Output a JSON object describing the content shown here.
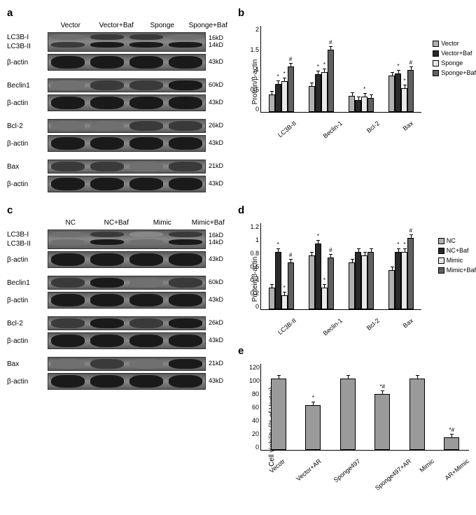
{
  "panels": {
    "a": {
      "label": "a",
      "header": [
        "Vector",
        "Vector+Baf",
        "Sponge",
        "Sponge+Baf"
      ],
      "groups": [
        {
          "labels": [
            "LC3B-I",
            "LC3B-II"
          ],
          "sizes": [
            "16kD",
            "14kD"
          ],
          "double": true,
          "bands": [
            [
              "light",
              "med"
            ],
            [
              "med",
              "dark"
            ],
            [
              "med",
              "dark"
            ],
            [
              "light",
              "dark"
            ]
          ]
        },
        {
          "labels": [
            "β-actin"
          ],
          "sizes": [
            "43kD"
          ],
          "thick": true,
          "bands": [
            "dark",
            "dark",
            "dark",
            "dark"
          ]
        },
        {
          "labels": [
            "Beclin1"
          ],
          "sizes": [
            "60kD"
          ],
          "bands": [
            "light",
            "med",
            "med",
            "dark"
          ]
        },
        {
          "labels": [
            "β-actin"
          ],
          "sizes": [
            "43kD"
          ],
          "thick": true,
          "bands": [
            "dark",
            "dark",
            "dark",
            "dark"
          ]
        },
        {
          "labels": [
            "Bcl-2"
          ],
          "sizes": [
            "26kD"
          ],
          "bands": [
            "light",
            "light",
            "med",
            "med"
          ]
        },
        {
          "labels": [
            "β-actin"
          ],
          "sizes": [
            "43kD"
          ],
          "thick": true,
          "bands": [
            "dark",
            "dark",
            "dark",
            "dark"
          ]
        },
        {
          "labels": [
            "Bax"
          ],
          "sizes": [
            "21kD"
          ],
          "bands": [
            "med",
            "med",
            "light",
            "med"
          ]
        },
        {
          "labels": [
            "β-actin"
          ],
          "sizes": [
            "43kD"
          ],
          "thick": true,
          "bands": [
            "dark",
            "dark",
            "dark",
            "dark"
          ]
        }
      ]
    },
    "c": {
      "label": "c",
      "header": [
        "NC",
        "NC+Baf",
        "Mimic",
        "Mimic+Baf"
      ],
      "groups": [
        {
          "labels": [
            "LC3B-I",
            "LC3B-II"
          ],
          "sizes": [
            "16kD",
            "14kD"
          ],
          "double": true,
          "bands": [
            [
              "light",
              "light"
            ],
            [
              "med",
              "dark"
            ],
            [
              "faint",
              "light"
            ],
            [
              "med",
              "dark"
            ]
          ]
        },
        {
          "labels": [
            "β-actin"
          ],
          "sizes": [
            "43kD"
          ],
          "thick": true,
          "bands": [
            "dark",
            "dark",
            "dark",
            "dark"
          ]
        },
        {
          "labels": [
            "Beclin1"
          ],
          "sizes": [
            "60kD"
          ],
          "bands": [
            "med",
            "dark",
            "light",
            "med"
          ]
        },
        {
          "labels": [
            "β-actin"
          ],
          "sizes": [
            "43kD"
          ],
          "thick": true,
          "bands": [
            "dark",
            "dark",
            "dark",
            "dark"
          ]
        },
        {
          "labels": [
            "Bcl-2"
          ],
          "sizes": [
            "26kD"
          ],
          "bands": [
            "med",
            "dark",
            "med",
            "dark"
          ]
        },
        {
          "labels": [
            "β-actin"
          ],
          "sizes": [
            "43kD"
          ],
          "thick": true,
          "bands": [
            "dark",
            "dark",
            "dark",
            "dark"
          ]
        },
        {
          "labels": [
            "Bax"
          ],
          "sizes": [
            "21kD"
          ],
          "bands": [
            "light",
            "med",
            "light",
            "dark"
          ]
        },
        {
          "labels": [
            "β-actin"
          ],
          "sizes": [
            "43kD"
          ],
          "thick": true,
          "bands": [
            "dark",
            "dark",
            "dark",
            "dark"
          ]
        }
      ]
    }
  },
  "charts": {
    "b": {
      "label": "b",
      "ylabel": "Protein/β-actin",
      "ylim": [
        0,
        2
      ],
      "yticks": [
        "2",
        "1.5",
        "1",
        "0.5",
        "0"
      ],
      "categories": [
        "LC3B-II",
        "Beclin-1",
        "Bcl-2",
        "Bax"
      ],
      "series": [
        {
          "name": "Vector",
          "color": "#b0b0b0"
        },
        {
          "name": "Vector+Baf",
          "color": "#2a2a2a"
        },
        {
          "name": "Sponge",
          "color": "#e8e8e8"
        },
        {
          "name": "Sponge+Baf",
          "color": "#606060"
        }
      ],
      "data": [
        [
          0.4,
          0.65,
          0.72,
          1.05
        ],
        [
          0.6,
          0.88,
          0.92,
          1.45
        ],
        [
          0.38,
          0.28,
          0.35,
          0.32
        ],
        [
          0.85,
          0.9,
          0.55,
          0.98
        ]
      ],
      "sig": [
        [
          "",
          "*",
          "*",
          "#"
        ],
        [
          "",
          "*",
          "*",
          "#"
        ],
        [
          "",
          "",
          "*",
          ""
        ],
        [
          "",
          "*",
          "*",
          "#"
        ]
      ]
    },
    "d": {
      "label": "d",
      "ylabel": "Protein/β-actin",
      "ylim": [
        0,
        1.2
      ],
      "yticks": [
        "1.2",
        "1",
        "0.8",
        "0.6",
        "0.4",
        "0.2",
        "0"
      ],
      "categories": [
        "LC3B-II",
        "Beclin-1",
        "Bcl-2",
        "Bax"
      ],
      "series": [
        {
          "name": "NC",
          "color": "#b0b0b0"
        },
        {
          "name": "NC+Baf",
          "color": "#2a2a2a"
        },
        {
          "name": "Mimic",
          "color": "#e8e8e8"
        },
        {
          "name": "Mimic+Baf",
          "color": "#606060"
        }
      ],
      "data": [
        [
          0.3,
          0.8,
          0.2,
          0.65
        ],
        [
          0.75,
          0.92,
          0.3,
          0.72
        ],
        [
          0.65,
          0.8,
          0.75,
          0.8
        ],
        [
          0.55,
          0.8,
          0.8,
          1.0
        ]
      ],
      "sig": [
        [
          "",
          "*",
          "*",
          "#"
        ],
        [
          "",
          "*",
          "*",
          "#"
        ],
        [
          "",
          "",
          "",
          ""
        ],
        [
          "",
          "*",
          "*",
          "#"
        ]
      ]
    },
    "e": {
      "label": "e",
      "ylabel": "Cell viability (% of Vector)",
      "ylim": [
        0,
        120
      ],
      "yticks": [
        "120",
        "100",
        "80",
        "60",
        "40",
        "20",
        "0"
      ],
      "categories": [
        "Vecotr",
        "Vector+AR",
        "Sponge497",
        "Sponge497+AR",
        "Mimic",
        "AR+Mimic"
      ],
      "color": "#9a9a9a",
      "values": [
        100,
        62,
        100,
        78,
        100,
        18
      ],
      "sig": [
        "",
        "*",
        "",
        "*#",
        "",
        "*#"
      ]
    }
  }
}
